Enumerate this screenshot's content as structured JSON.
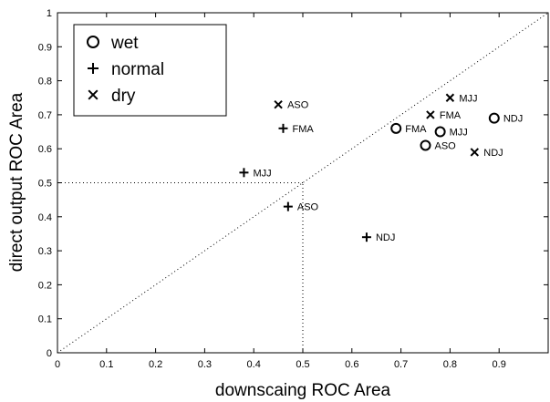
{
  "chart_data": {
    "type": "scatter",
    "title": "",
    "xlabel": "downscaing ROC Area",
    "ylabel": "direct output ROC Area",
    "xlim": [
      0,
      1
    ],
    "ylim": [
      0,
      1
    ],
    "xticks": [
      "0",
      "0.1",
      "0.2",
      "0.3",
      "0.4",
      "0.5",
      "0.6",
      "0.7",
      "0.8",
      "0.9"
    ],
    "yticks": [
      "0",
      "0.1",
      "0.2",
      "0.3",
      "0.4",
      "0.5",
      "0.6",
      "0.7",
      "0.8",
      "0.9",
      "1"
    ],
    "grid": false,
    "legend_position": "top-left",
    "reference_lines": [
      {
        "type": "diagonal",
        "from": [
          0,
          0
        ],
        "to": [
          1,
          1
        ],
        "style": "dotted"
      },
      {
        "type": "horizontal",
        "y": 0.5,
        "x_range": [
          0,
          0.5
        ],
        "style": "dotted"
      },
      {
        "type": "vertical",
        "x": 0.5,
        "y_range": [
          0,
          0.5
        ],
        "style": "dotted"
      }
    ],
    "series": [
      {
        "name": "wet",
        "marker": "circle",
        "points": [
          {
            "x": 0.69,
            "y": 0.66,
            "label": "FMA"
          },
          {
            "x": 0.78,
            "y": 0.65,
            "label": "MJJ"
          },
          {
            "x": 0.75,
            "y": 0.61,
            "label": "ASO"
          },
          {
            "x": 0.89,
            "y": 0.69,
            "label": "NDJ"
          }
        ]
      },
      {
        "name": "normal",
        "marker": "plus",
        "points": [
          {
            "x": 0.46,
            "y": 0.66,
            "label": "FMA"
          },
          {
            "x": 0.38,
            "y": 0.53,
            "label": "MJJ"
          },
          {
            "x": 0.47,
            "y": 0.43,
            "label": "ASO"
          },
          {
            "x": 0.63,
            "y": 0.34,
            "label": "NDJ"
          }
        ]
      },
      {
        "name": "dry",
        "marker": "cross",
        "points": [
          {
            "x": 0.45,
            "y": 0.73,
            "label": "ASO"
          },
          {
            "x": 0.76,
            "y": 0.7,
            "label": "FMA"
          },
          {
            "x": 0.8,
            "y": 0.75,
            "label": "MJJ"
          },
          {
            "x": 0.85,
            "y": 0.59,
            "label": "NDJ"
          }
        ]
      }
    ]
  }
}
